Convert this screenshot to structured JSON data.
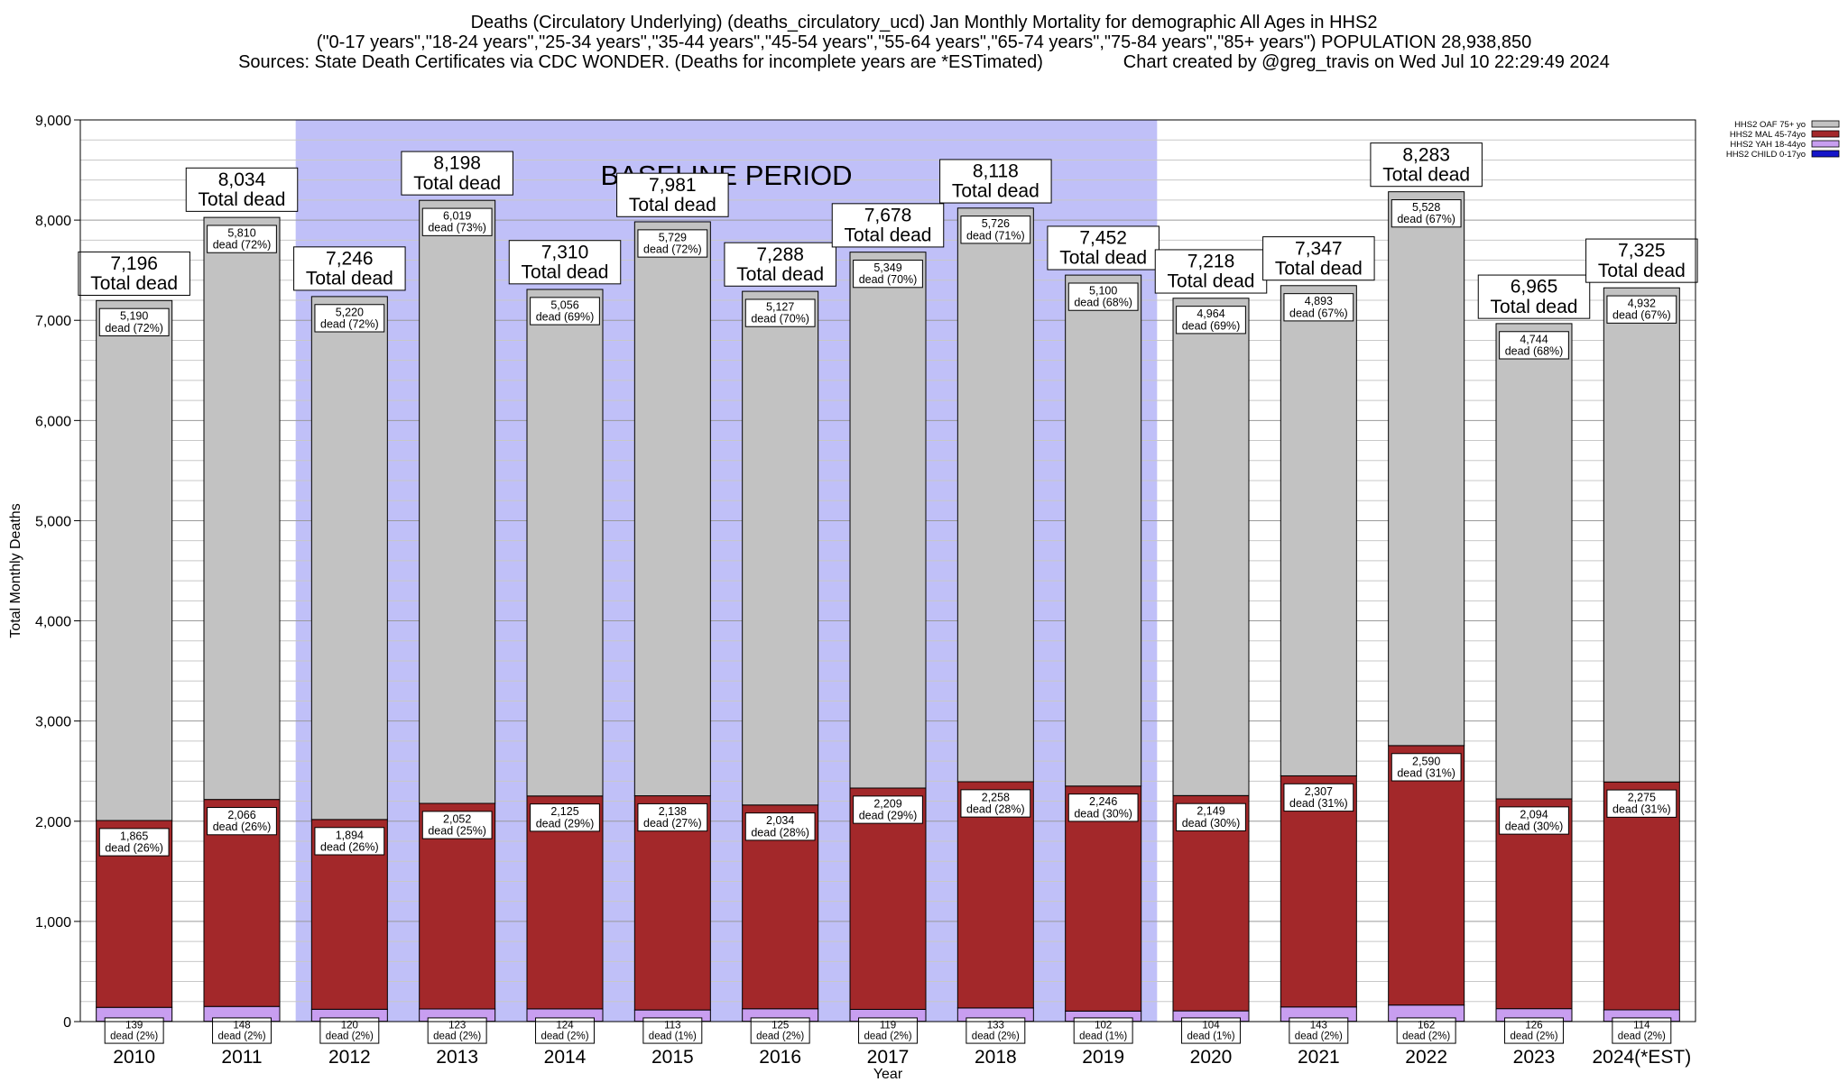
{
  "title": {
    "line1": "Deaths (Circulatory Underlying) (deaths_circulatory_ucd) Jan Monthly Mortality for demographic All Ages in HHS2",
    "line2": "(\"0-17 years\",\"18-24 years\",\"25-34 years\",\"35-44 years\",\"45-54 years\",\"55-64 years\",\"65-74 years\",\"75-84 years\",\"85+ years\") POPULATION 28,938,850",
    "line3": "Sources: State Death Certificates via CDC WONDER. (Deaths for incomplete years are *ESTimated)                Chart created by @greg_travis on Wed Jul 10 22:29:49 2024"
  },
  "chart_data": {
    "type": "bar",
    "stacked": true,
    "xlabel": "Year",
    "ylabel": "Total Monthly Deaths",
    "ylim": [
      0,
      9000
    ],
    "yticks": [
      0,
      1000,
      2000,
      3000,
      4000,
      5000,
      6000,
      7000,
      8000,
      9000
    ],
    "ytick_labels": [
      "0",
      "1,000",
      "2,000",
      "3,000",
      "4,000",
      "5,000",
      "6,000",
      "7,000",
      "8,000",
      "9,000"
    ],
    "grid": true,
    "legend_position": "top-right",
    "baseline": {
      "label": "BASELINE PERIOD",
      "from": "2012",
      "to": "2019",
      "color": "#c0c0f8"
    },
    "categories": [
      "2010",
      "2011",
      "2012",
      "2013",
      "2014",
      "2015",
      "2016",
      "2017",
      "2018",
      "2019",
      "2020",
      "2021",
      "2022",
      "2023",
      "2024(*EST)"
    ],
    "series": [
      {
        "name": "HHS2 CHILD 0-17yo",
        "color": "#1515c8",
        "values": [
          3,
          3,
          3,
          3,
          3,
          3,
          3,
          3,
          3,
          3,
          3,
          3,
          3,
          3,
          3
        ]
      },
      {
        "name": "HHS2 YAH 18-44yo",
        "color": "#c89ef0",
        "values": [
          139,
          148,
          120,
          123,
          124,
          113,
          125,
          119,
          133,
          102,
          104,
          143,
          162,
          126,
          114
        ],
        "value_labels": [
          "139",
          "148",
          "120",
          "123",
          "124",
          "113",
          "125",
          "119",
          "133",
          "102",
          "104",
          "143",
          "162",
          "126",
          "114"
        ],
        "labels": [
          "dead (2%)",
          "dead (2%)",
          "dead (2%)",
          "dead (2%)",
          "dead (2%)",
          "dead (1%)",
          "dead (2%)",
          "dead (2%)",
          "dead (2%)",
          "dead (1%)",
          "dead (1%)",
          "dead (2%)",
          "dead (2%)",
          "dead (2%)",
          "dead (2%)"
        ]
      },
      {
        "name": "HHS2 MAL 45-74yo",
        "color": "#a3282a",
        "values": [
          1865,
          2066,
          1894,
          2052,
          2125,
          2138,
          2034,
          2209,
          2258,
          2246,
          2149,
          2307,
          2590,
          2094,
          2275
        ],
        "value_labels": [
          "1,865",
          "2,066",
          "1,894",
          "2,052",
          "2,125",
          "2,138",
          "2,034",
          "2,209",
          "2,258",
          "2,246",
          "2,149",
          "2,307",
          "2,590",
          "2,094",
          "2,275"
        ],
        "labels": [
          "dead (26%)",
          "dead (26%)",
          "dead (26%)",
          "dead (25%)",
          "dead (29%)",
          "dead (27%)",
          "dead (28%)",
          "dead (29%)",
          "dead (28%)",
          "dead (30%)",
          "dead (30%)",
          "dead (31%)",
          "dead (31%)",
          "dead (30%)",
          "dead (31%)"
        ]
      },
      {
        "name": "HHS2 OAF 75+ yo",
        "color": "#c2c2c2",
        "values": [
          5190,
          5810,
          5220,
          6019,
          5056,
          5729,
          5127,
          5349,
          5726,
          5100,
          4964,
          4893,
          5528,
          4744,
          4932
        ],
        "value_labels": [
          "5,190",
          "5,810",
          "5,220",
          "6,019",
          "5,056",
          "5,729",
          "5,127",
          "5,349",
          "5,726",
          "5,100",
          "4,964",
          "4,893",
          "5,528",
          "4,744",
          "4,932"
        ],
        "labels": [
          "dead (72%)",
          "dead (72%)",
          "dead (72%)",
          "dead (73%)",
          "dead (69%)",
          "dead (72%)",
          "dead (70%)",
          "dead (70%)",
          "dead (71%)",
          "dead (68%)",
          "dead (69%)",
          "dead (67%)",
          "dead (67%)",
          "dead (68%)",
          "dead (67%)"
        ]
      }
    ],
    "totals": [
      7196,
      8034,
      7246,
      8198,
      7310,
      7981,
      7288,
      7678,
      8118,
      7452,
      7218,
      7347,
      8283,
      6965,
      7325
    ],
    "total_labels": [
      "7,196",
      "8,034",
      "7,246",
      "8,198",
      "7,310",
      "7,981",
      "7,288",
      "7,678",
      "8,118",
      "7,452",
      "7,218",
      "7,347",
      "8,283",
      "6,965",
      "7,325"
    ],
    "total_suffix": "Total dead"
  }
}
